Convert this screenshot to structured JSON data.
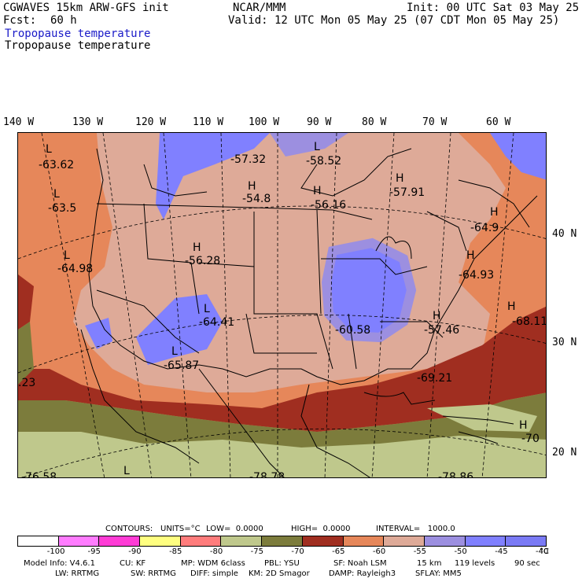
{
  "header": {
    "model": "CGWAVES 15km ARW-GFS init",
    "fcst_label": "Fcst:",
    "fcst_value": "60 h",
    "center": "NCAR/MMM",
    "init": "Init: 00 UTC Sat 03 May 25",
    "valid": "Valid: 12 UTC Mon 05 May 25 (07 CDT Mon 05 May 25)",
    "field_1": "Tropopause temperature",
    "field_2": "Tropopause temperature"
  },
  "longitudes": [
    "140 W",
    "130 W",
    "120 W",
    "110 W",
    "100 W",
    "90 W",
    "80 W",
    "70 W",
    "60 W"
  ],
  "latitudes": [
    "40 N",
    "30 N",
    "20 N"
  ],
  "map_labels": [
    {
      "id": "l1",
      "hl": "L",
      "value": "-63.62"
    },
    {
      "id": "l2",
      "hl": "L",
      "value": "-63.5"
    },
    {
      "id": "l3",
      "hl": "L",
      "value": "-64.98"
    },
    {
      "id": "l4",
      "hl": "L",
      "value": "-57.32"
    },
    {
      "id": "l5",
      "hl": "L",
      "value": "-58.52"
    },
    {
      "id": "h1",
      "hl": "H",
      "value": "-54.8"
    },
    {
      "id": "h2",
      "hl": "H",
      "value": "-56.16"
    },
    {
      "id": "h3",
      "hl": "H",
      "value": "-57.91"
    },
    {
      "id": "h4",
      "hl": "H",
      "value": "-56.28"
    },
    {
      "id": "h5",
      "hl": "H",
      "value": "-64.9"
    },
    {
      "id": "h6",
      "hl": "H",
      "value": "-64.93"
    },
    {
      "id": "l6",
      "hl": "L",
      "value": "-64.41"
    },
    {
      "id": "l7",
      "hl": "L",
      "value": "-65.87"
    },
    {
      "id": "l8",
      "hl": "",
      "value": "-60.58"
    },
    {
      "id": "h7",
      "hl": "H",
      "value": "-57.46"
    },
    {
      "id": "h8",
      "hl": "H",
      "value": "-68.11"
    },
    {
      "id": "l9",
      "hl": "",
      "value": "-69.21"
    },
    {
      "id": "h9",
      "hl": "H",
      "value": "-70"
    },
    {
      "id": "l10",
      "hl": "",
      "value": ".23"
    },
    {
      "id": "l11",
      "hl": "L",
      "value": "-76.58"
    },
    {
      "id": "l12",
      "hl": "",
      "value": "-78.78"
    },
    {
      "id": "l13",
      "hl": "",
      "value": "-78.86"
    },
    {
      "id": "lb",
      "hl": "L",
      "value": ""
    }
  ],
  "contours": {
    "label": "CONTOURS:",
    "units": "UNITS=°C",
    "low": "LOW=  0.0000",
    "high": "HIGH=  0.0000",
    "interval": "INTERVAL=   1000.0"
  },
  "colorbar": {
    "colors": [
      "#ffffff",
      "#ff7cff",
      "#ff3cd6",
      "#ffff80",
      "#ff7c7c",
      "#bfc88c",
      "#7c7c3c",
      "#a02e20",
      "#e6875a",
      "#deaa98",
      "#9c8fe0",
      "#8080ff",
      "#7a7af5"
    ],
    "ticks": [
      "-100",
      "-95",
      "-90",
      "-85",
      "-80",
      "-75",
      "-70",
      "-65",
      "-60",
      "-55",
      "-50",
      "-45",
      "-40"
    ],
    "unit": "°C"
  },
  "model_info": {
    "line1": [
      "Model Info: V4.6.1",
      "CU: KF",
      "MP: WDM 6class",
      "PBL: YSU",
      "SF: Noah LSM",
      "15 km",
      "119 levels",
      "90 sec"
    ],
    "line2": [
      "LW: RRTMG",
      "SW: RRTMG",
      "DIFF: simple",
      "KM: 2D Smagor",
      "DAMP: Rayleigh3",
      "SFLAY: MM5"
    ]
  },
  "fill_colors": {
    "pink": "#deaa98",
    "orange": "#e6875a",
    "red": "#a02e20",
    "olive": "#7c7c3c",
    "khaki": "#bfc88c",
    "lavender": "#9c8fe0",
    "blue": "#8080ff"
  }
}
